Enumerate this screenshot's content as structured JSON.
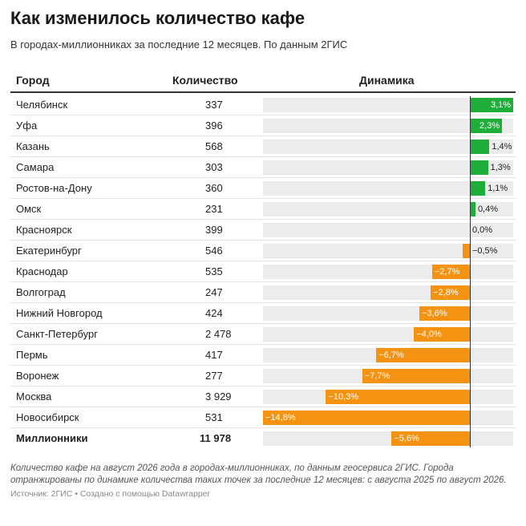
{
  "title": "Как изменилось количество кафе",
  "subtitle": "В городах-миллионниках за последние 12 месяцев. По данным 2ГИС",
  "headers": {
    "city": "Город",
    "count": "Количество",
    "dynamics": "Динамика"
  },
  "colors": {
    "positive": "#1fad3a",
    "negative": "#f49312",
    "track": "#ececec"
  },
  "chart_data": {
    "type": "table",
    "columns": [
      "Город",
      "Количество",
      "Динамика"
    ],
    "rows": [
      {
        "city": "Челябинск",
        "count": "337",
        "change": 3.1,
        "label": "3,1%"
      },
      {
        "city": "Уфа",
        "count": "396",
        "change": 2.3,
        "label": "2,3%"
      },
      {
        "city": "Казань",
        "count": "568",
        "change": 1.4,
        "label": "1,4%"
      },
      {
        "city": "Самара",
        "count": "303",
        "change": 1.3,
        "label": "1,3%"
      },
      {
        "city": "Ростов-на-Дону",
        "count": "360",
        "change": 1.1,
        "label": "1,1%"
      },
      {
        "city": "Омск",
        "count": "231",
        "change": 0.4,
        "label": "0,4%"
      },
      {
        "city": "Красноярск",
        "count": "399",
        "change": 0.0,
        "label": "0,0%"
      },
      {
        "city": "Екатеринбург",
        "count": "546",
        "change": -0.5,
        "label": "−0,5%"
      },
      {
        "city": "Краснодар",
        "count": "535",
        "change": -2.7,
        "label": "−2,7%"
      },
      {
        "city": "Волгоград",
        "count": "247",
        "change": -2.8,
        "label": "−2,8%"
      },
      {
        "city": "Нижний Новгород",
        "count": "424",
        "change": -3.6,
        "label": "−3,6%"
      },
      {
        "city": "Санкт-Петербург",
        "count": "2 478",
        "change": -4.0,
        "label": "−4,0%"
      },
      {
        "city": "Пермь",
        "count": "417",
        "change": -6.7,
        "label": "−6,7%"
      },
      {
        "city": "Воронеж",
        "count": "277",
        "change": -7.7,
        "label": "−7,7%"
      },
      {
        "city": "Москва",
        "count": "3 929",
        "change": -10.3,
        "label": "−10,3%"
      },
      {
        "city": "Новосибирск",
        "count": "531",
        "change": -14.8,
        "label": "−14,8%"
      },
      {
        "city": "Миллионники",
        "count": "11 978",
        "change": -5.6,
        "label": "−5,6%",
        "bold": true
      }
    ],
    "range": [
      -14.8,
      3.1
    ]
  },
  "footnote": "Количество кафе на август 2026 года в городах-миллионниках, по данным геосервиса 2ГИС. Города отранжированы по динамике количества таких точек за последние 12 месяцев: с августа 2025 по август 2026.",
  "source": "Источник: 2ГИС • Создано с помощью Datawrapper"
}
